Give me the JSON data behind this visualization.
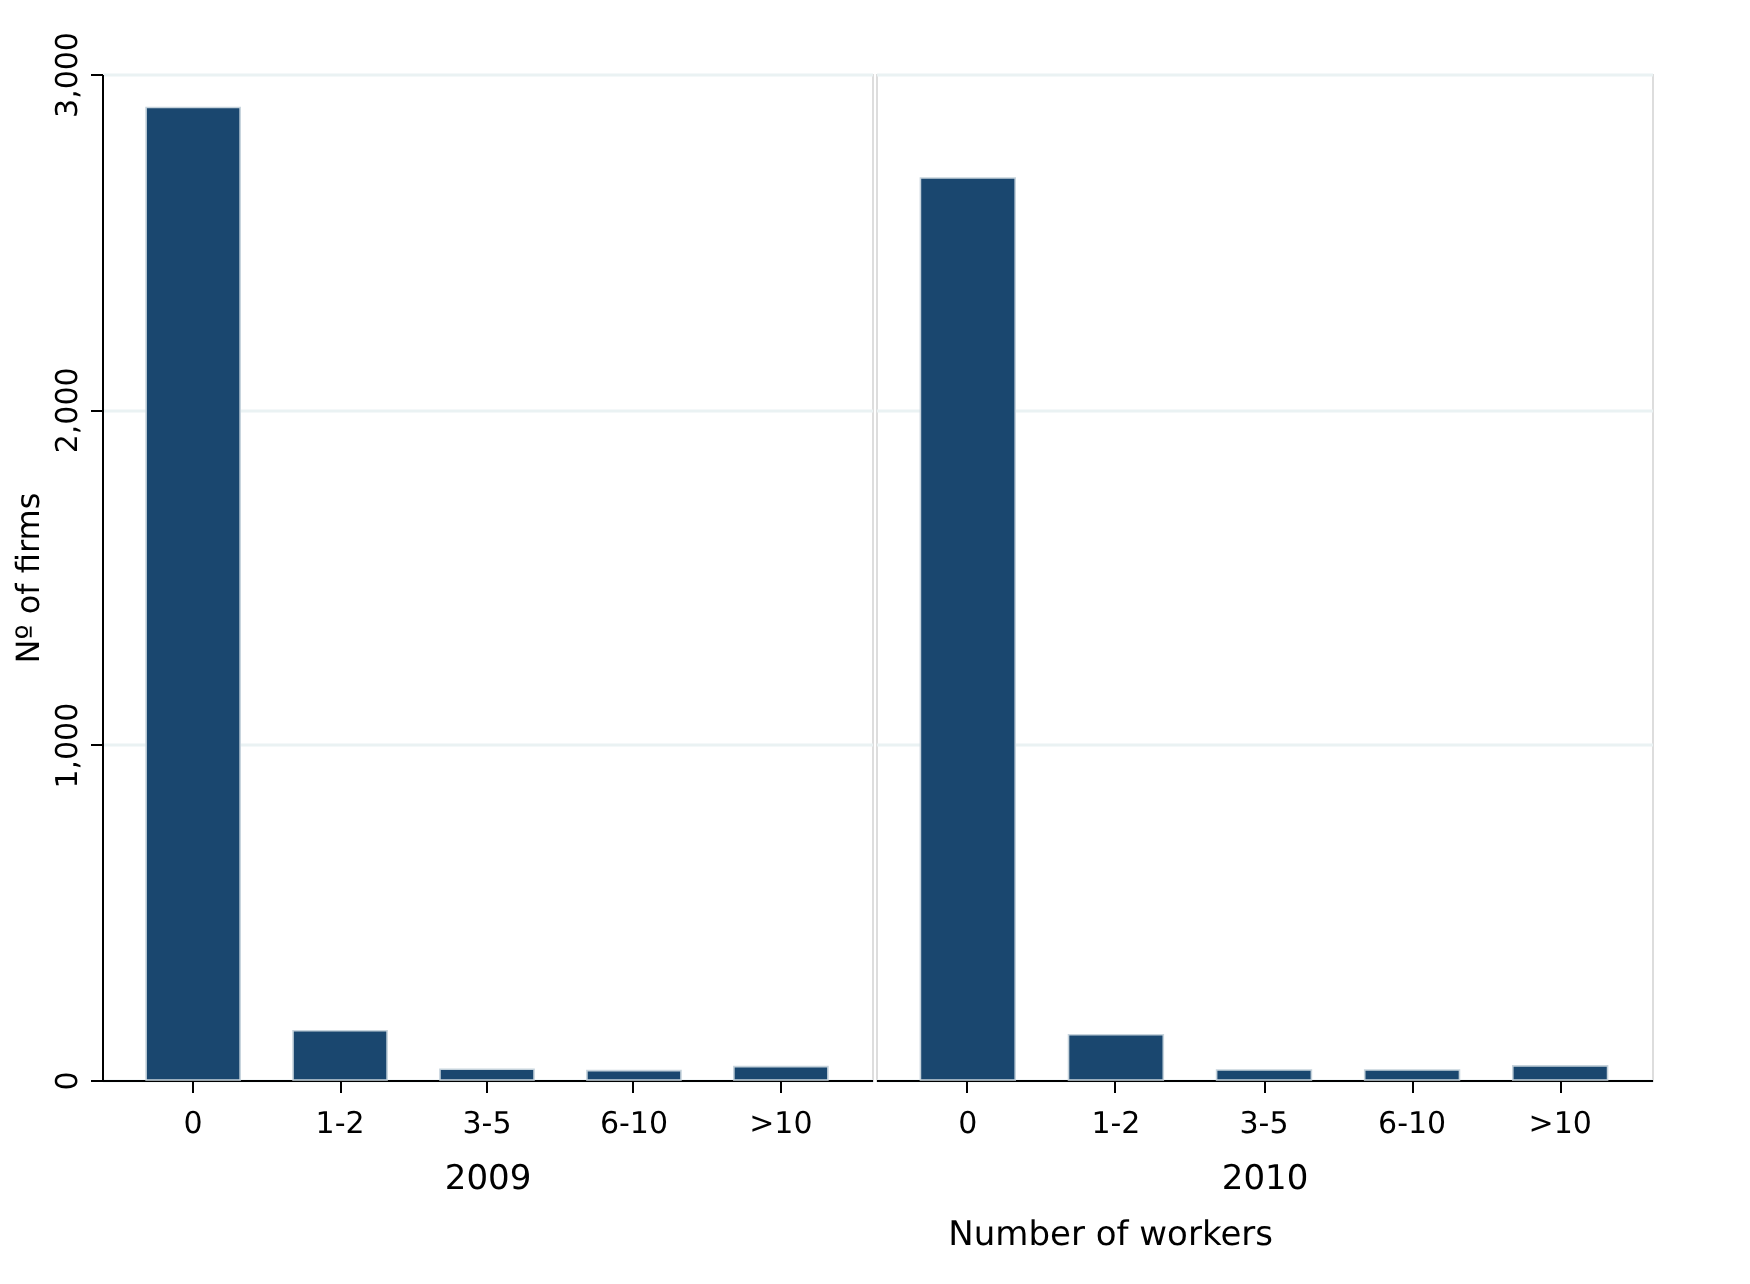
{
  "chart_data": [
    {
      "type": "bar",
      "categories": [
        "0",
        "1-2",
        "3-5",
        "6-10",
        ">10"
      ],
      "values": [
        2900,
        147,
        32,
        28,
        40
      ],
      "color": "#1a476f",
      "xlabel": "2009",
      "ylabel": "Nº of firms",
      "ylim": [
        0,
        3000
      ],
      "yticks": [
        {
          "value": 0,
          "label": "0"
        },
        {
          "value": 1000,
          "label": "1,000"
        },
        {
          "value": 2000,
          "label": "2,000"
        },
        {
          "value": 3000,
          "label": "3,000"
        }
      ],
      "grid": "y"
    },
    {
      "type": "bar",
      "categories": [
        "0",
        "1-2",
        "3-5",
        "6-10",
        ">10"
      ],
      "values": [
        2690,
        135,
        30,
        30,
        42
      ],
      "color": "#1a476f",
      "xlabel": "2010",
      "ylim": [
        0,
        3000
      ],
      "grid": "y",
      "tick_labels": "x",
      "annotations": [
        "Number of workers"
      ]
    }
  ]
}
